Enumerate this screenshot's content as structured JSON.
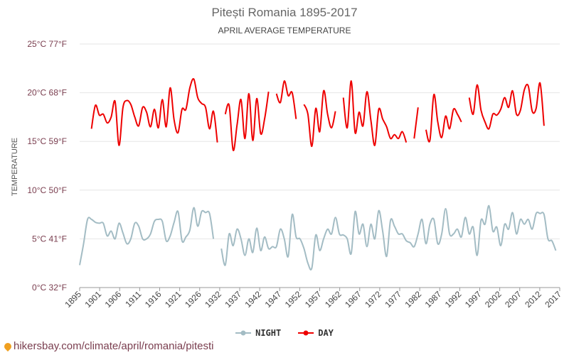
{
  "header": {
    "title": "Pitești Romania 1895-2017",
    "subtitle": "APRIL AVERAGE TEMPERATURE"
  },
  "legend": {
    "night_label": "NIGHT",
    "day_label": "DAY"
  },
  "footer": {
    "url": "hikersbay.com/climate/april/romania/pitesti"
  },
  "colors": {
    "night": "#a3bcc4",
    "day": "#ee0000",
    "grid": "#e6e6e6",
    "ytick": "#7a3e4f"
  },
  "chart_data": {
    "type": "line",
    "title": "Pitești Romania 1895-2017",
    "subtitle": "APRIL AVERAGE TEMPERATURE",
    "ylabel": "TEMPERATURE",
    "xlabel": "",
    "ylim": [
      0,
      25
    ],
    "xlim": [
      1895,
      2017
    ],
    "grid": true,
    "legend_position": "bottom",
    "y_ticks": [
      {
        "value": 0,
        "label": "0°C 32°F"
      },
      {
        "value": 5,
        "label": "5°C 41°F"
      },
      {
        "value": 10,
        "label": "10°C 50°F"
      },
      {
        "value": 15,
        "label": "15°C 59°F"
      },
      {
        "value": 20,
        "label": "20°C 68°F"
      },
      {
        "value": 25,
        "label": "25°C 77°F"
      }
    ],
    "x_ticks": [
      "1895",
      "1901",
      "1906",
      "1911",
      "1916",
      "1921",
      "1926",
      "1932",
      "1937",
      "1942",
      "1947",
      "1952",
      "1957",
      "1962",
      "1967",
      "1972",
      "1977",
      "1982",
      "1987",
      "1992",
      "1997",
      "2002",
      "2007",
      "2012",
      "2017"
    ],
    "series": [
      {
        "name": "NIGHT",
        "color": "#a3bcc4",
        "segments": [
          [
            [
              1895,
              2.3
            ],
            [
              1896,
              4.5
            ],
            [
              1897,
              7.0
            ],
            [
              1898,
              7.0
            ],
            [
              1899,
              6.7
            ],
            [
              1900,
              6.6
            ],
            [
              1901,
              6.6
            ],
            [
              1902,
              5.3
            ],
            [
              1903,
              5.8
            ],
            [
              1904,
              5.0
            ],
            [
              1905,
              6.6
            ],
            [
              1906,
              5.6
            ],
            [
              1907,
              4.5
            ],
            [
              1908,
              5.0
            ],
            [
              1909,
              6.6
            ],
            [
              1910,
              6.3
            ],
            [
              1911,
              5.0
            ],
            [
              1912,
              5.0
            ],
            [
              1913,
              5.5
            ],
            [
              1914,
              6.8
            ],
            [
              1915,
              7.0
            ],
            [
              1916,
              6.8
            ],
            [
              1917,
              4.8
            ],
            [
              1918,
              5.3
            ],
            [
              1919,
              6.7
            ],
            [
              1920,
              7.8
            ],
            [
              1921,
              4.8
            ],
            [
              1922,
              5.2
            ],
            [
              1923,
              5.9
            ],
            [
              1924,
              8.2
            ],
            [
              1925,
              6.3
            ],
            [
              1926,
              7.8
            ],
            [
              1927,
              7.7
            ],
            [
              1928,
              7.6
            ],
            [
              1929,
              5.0
            ]
          ],
          [
            [
              1931,
              4.0
            ],
            [
              1932,
              2.3
            ],
            [
              1933,
              5.5
            ],
            [
              1934,
              4.3
            ],
            [
              1935,
              6.0
            ],
            [
              1936,
              5.0
            ],
            [
              1937,
              3.3
            ],
            [
              1938,
              5.0
            ],
            [
              1939,
              3.6
            ],
            [
              1940,
              6.1
            ],
            [
              1941,
              3.8
            ],
            [
              1942,
              5.2
            ],
            [
              1943,
              4.0
            ],
            [
              1944,
              4.2
            ],
            [
              1945,
              4.2
            ],
            [
              1946,
              6.0
            ],
            [
              1947,
              5.0
            ],
            [
              1948,
              3.2
            ],
            [
              1949,
              7.5
            ],
            [
              1950,
              5.2
            ],
            [
              1951,
              5.0
            ],
            [
              1952,
              4.0
            ],
            [
              1953,
              2.5
            ],
            [
              1954,
              2.0
            ],
            [
              1955,
              5.4
            ],
            [
              1956,
              3.8
            ],
            [
              1957,
              5.0
            ],
            [
              1958,
              6.0
            ],
            [
              1959,
              5.5
            ],
            [
              1960,
              7.2
            ],
            [
              1961,
              5.5
            ],
            [
              1962,
              5.4
            ],
            [
              1963,
              5.0
            ],
            [
              1964,
              3.5
            ],
            [
              1965,
              7.8
            ],
            [
              1966,
              5.5
            ],
            [
              1967,
              6.5
            ],
            [
              1968,
              4.2
            ],
            [
              1969,
              6.5
            ],
            [
              1970,
              5.0
            ],
            [
              1971,
              7.9
            ],
            [
              1972,
              5.8
            ],
            [
              1973,
              3.2
            ],
            [
              1974,
              6.9
            ],
            [
              1975,
              6.3
            ],
            [
              1976,
              5.5
            ],
            [
              1977,
              5.5
            ],
            [
              1978,
              4.8
            ],
            [
              1979,
              4.6
            ],
            [
              1980,
              4.2
            ],
            [
              1981,
              5.5
            ],
            [
              1982,
              7.0
            ],
            [
              1983,
              4.5
            ],
            [
              1984,
              6.5
            ],
            [
              1985,
              7.0
            ],
            [
              1986,
              4.5
            ],
            [
              1987,
              5.5
            ],
            [
              1988,
              8.1
            ],
            [
              1989,
              5.5
            ],
            [
              1990,
              5.5
            ],
            [
              1991,
              6.0
            ],
            [
              1992,
              5.2
            ],
            [
              1993,
              7.2
            ],
            [
              1994,
              5.5
            ],
            [
              1995,
              6.2
            ],
            [
              1996,
              3.3
            ],
            [
              1997,
              6.9
            ],
            [
              1998,
              6.5
            ],
            [
              1999,
              8.4
            ],
            [
              2000,
              5.8
            ],
            [
              2001,
              6.2
            ],
            [
              2002,
              4.3
            ],
            [
              2003,
              6.5
            ],
            [
              2004,
              6.0
            ],
            [
              2005,
              7.7
            ],
            [
              2006,
              5.5
            ],
            [
              2007,
              7.0
            ],
            [
              2008,
              6.5
            ],
            [
              2009,
              7.0
            ],
            [
              2010,
              6.0
            ],
            [
              2011,
              7.6
            ],
            [
              2012,
              7.6
            ],
            [
              2013,
              7.5
            ],
            [
              2014,
              5.0
            ],
            [
              2015,
              4.8
            ],
            [
              2016,
              3.8
            ]
          ]
        ]
      },
      {
        "name": "DAY",
        "color": "#ee0000",
        "segments": [
          [
            [
              1898,
              16.3
            ],
            [
              1899,
              18.7
            ],
            [
              1900,
              17.7
            ],
            [
              1901,
              17.8
            ],
            [
              1902,
              16.9
            ],
            [
              1903,
              17.5
            ],
            [
              1904,
              19.1
            ],
            [
              1905,
              14.6
            ],
            [
              1906,
              18.5
            ],
            [
              1907,
              19.2
            ],
            [
              1908,
              18.8
            ],
            [
              1909,
              17.5
            ],
            [
              1910,
              16.6
            ],
            [
              1911,
              18.5
            ],
            [
              1912,
              18.0
            ],
            [
              1913,
              16.5
            ],
            [
              1914,
              18.3
            ],
            [
              1915,
              16.4
            ],
            [
              1916,
              19.3
            ],
            [
              1917,
              16.5
            ],
            [
              1918,
              20.5
            ],
            [
              1919,
              17.2
            ],
            [
              1920,
              15.9
            ],
            [
              1921,
              18.3
            ],
            [
              1922,
              18.3
            ],
            [
              1923,
              20.5
            ],
            [
              1924,
              21.4
            ],
            [
              1925,
              19.5
            ],
            [
              1926,
              18.9
            ],
            [
              1927,
              18.5
            ],
            [
              1928,
              16.3
            ],
            [
              1929,
              18.1
            ],
            [
              1930,
              14.9
            ]
          ],
          [
            [
              1932,
              17.8
            ],
            [
              1933,
              18.7
            ],
            [
              1934,
              14.1
            ],
            [
              1935,
              16.7
            ],
            [
              1936,
              19.3
            ],
            [
              1937,
              15.3
            ],
            [
              1938,
              19.9
            ],
            [
              1939,
              15.1
            ],
            [
              1940,
              19.4
            ],
            [
              1941,
              15.8
            ],
            [
              1942,
              17.3
            ],
            [
              1943,
              20.1
            ]
          ],
          [
            [
              1945,
              19.9
            ],
            [
              1946,
              19.0
            ],
            [
              1947,
              21.2
            ],
            [
              1948,
              19.7
            ],
            [
              1949,
              20.0
            ],
            [
              1950,
              17.3
            ]
          ],
          [
            [
              1952,
              18.8
            ],
            [
              1953,
              17.8
            ],
            [
              1954,
              14.5
            ],
            [
              1955,
              18.4
            ],
            [
              1956,
              16.0
            ],
            [
              1957,
              20.2
            ],
            [
              1958,
              17.8
            ],
            [
              1959,
              16.4
            ],
            [
              1960,
              18.1
            ]
          ],
          [
            [
              1962,
              19.5
            ],
            [
              1963,
              16.4
            ],
            [
              1964,
              21.2
            ],
            [
              1965,
              15.9
            ],
            [
              1966,
              18.0
            ],
            [
              1967,
              16.6
            ],
            [
              1968,
              20.1
            ],
            [
              1969,
              17.2
            ],
            [
              1970,
              14.6
            ],
            [
              1971,
              18.3
            ],
            [
              1972,
              17.3
            ],
            [
              1973,
              16.5
            ],
            [
              1974,
              15.3
            ],
            [
              1975,
              15.7
            ],
            [
              1976,
              15.3
            ],
            [
              1977,
              16.0
            ],
            [
              1978,
              14.9
            ]
          ],
          [
            [
              1980,
              15.3
            ],
            [
              1981,
              18.5
            ]
          ],
          [
            [
              1983,
              16.2
            ],
            [
              1984,
              15.1
            ],
            [
              1985,
              19.8
            ],
            [
              1986,
              17.0
            ],
            [
              1987,
              15.4
            ],
            [
              1988,
              17.6
            ],
            [
              1989,
              16.3
            ],
            [
              1990,
              18.3
            ],
            [
              1991,
              17.8
            ],
            [
              1992,
              17.0
            ]
          ],
          [
            [
              1994,
              19.5
            ],
            [
              1995,
              17.8
            ],
            [
              1996,
              20.8
            ],
            [
              1997,
              18.2
            ],
            [
              1998,
              17.0
            ],
            [
              1999,
              16.3
            ],
            [
              2000,
              17.8
            ],
            [
              2001,
              17.7
            ],
            [
              2002,
              18.3
            ],
            [
              2003,
              19.5
            ],
            [
              2004,
              18.5
            ],
            [
              2005,
              20.2
            ],
            [
              2006,
              17.8
            ],
            [
              2007,
              18.2
            ],
            [
              2008,
              20.3
            ],
            [
              2009,
              20.7
            ],
            [
              2010,
              18.1
            ],
            [
              2011,
              18.4
            ],
            [
              2012,
              21.0
            ],
            [
              2013,
              16.6
            ]
          ]
        ]
      }
    ]
  }
}
